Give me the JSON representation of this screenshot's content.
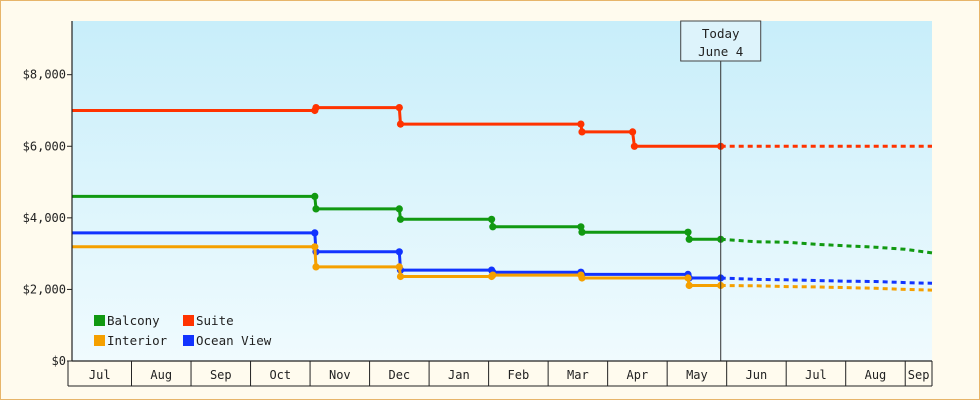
{
  "chart_data": {
    "type": "line",
    "y_ticks": [
      {
        "value": 0,
        "label": "$0"
      },
      {
        "value": 2000,
        "label": "$2,000"
      },
      {
        "value": 4000,
        "label": "$4,000"
      },
      {
        "value": 6000,
        "label": "$6,000"
      },
      {
        "value": 8000,
        "label": "$8,000"
      }
    ],
    "ylim": [
      0,
      9500
    ],
    "xlim": [
      0,
      14.45
    ],
    "months": [
      "Jul",
      "Aug",
      "Sep",
      "Oct",
      "Nov",
      "Dec",
      "Jan",
      "Feb",
      "Mar",
      "Apr",
      "May",
      "Jun",
      "Jul",
      "Aug",
      "Sep"
    ],
    "month_starts": [
      0,
      1,
      2,
      3,
      4,
      5,
      6,
      7,
      8,
      9,
      10,
      11,
      12,
      13,
      14
    ],
    "today": {
      "line1": "Today",
      "line2": "June 4",
      "x": 10.9
    },
    "grid": false,
    "legend_placement": "bottom-left",
    "legend": [
      {
        "label": "Balcony",
        "color": "#119911"
      },
      {
        "label": "Suite",
        "color": "#ff3300"
      },
      {
        "label": "Interior",
        "color": "#f5a000"
      },
      {
        "label": "Ocean View",
        "color": "#1133ff"
      }
    ],
    "series": [
      {
        "name": "Suite",
        "color": "#ff3300",
        "points": [
          [
            0,
            7000
          ],
          [
            4.08,
            7000
          ],
          [
            4.1,
            7080
          ],
          [
            5.5,
            7080
          ],
          [
            5.52,
            6620
          ],
          [
            8.55,
            6620
          ],
          [
            8.57,
            6400
          ],
          [
            9.42,
            6400
          ],
          [
            9.45,
            6000
          ],
          [
            10.9,
            6000
          ]
        ],
        "forecast": [
          [
            10.9,
            6000
          ],
          [
            12.0,
            6000
          ],
          [
            13.0,
            6000
          ],
          [
            14.45,
            6000
          ]
        ]
      },
      {
        "name": "Balcony",
        "color": "#119911",
        "points": [
          [
            0,
            4600
          ],
          [
            4.08,
            4600
          ],
          [
            4.1,
            4250
          ],
          [
            5.5,
            4250
          ],
          [
            5.52,
            3960
          ],
          [
            7.05,
            3960
          ],
          [
            7.07,
            3750
          ],
          [
            8.55,
            3750
          ],
          [
            8.57,
            3600
          ],
          [
            10.35,
            3600
          ],
          [
            10.37,
            3400
          ],
          [
            10.9,
            3400
          ]
        ],
        "forecast": [
          [
            10.9,
            3400
          ],
          [
            11.5,
            3330
          ],
          [
            12.0,
            3320
          ],
          [
            12.5,
            3260
          ],
          [
            13.0,
            3220
          ],
          [
            13.5,
            3180
          ],
          [
            14.0,
            3120
          ],
          [
            14.45,
            3020
          ]
        ]
      },
      {
        "name": "Ocean View",
        "color": "#1133ff",
        "points": [
          [
            0,
            3580
          ],
          [
            4.08,
            3580
          ],
          [
            4.1,
            3050
          ],
          [
            5.5,
            3050
          ],
          [
            5.52,
            2540
          ],
          [
            7.05,
            2540
          ],
          [
            7.07,
            2480
          ],
          [
            8.55,
            2480
          ],
          [
            8.57,
            2420
          ],
          [
            10.35,
            2420
          ],
          [
            10.37,
            2320
          ],
          [
            10.9,
            2320
          ]
        ],
        "forecast": [
          [
            10.9,
            2320
          ],
          [
            11.5,
            2280
          ],
          [
            12.0,
            2270
          ],
          [
            12.5,
            2250
          ],
          [
            13.0,
            2230
          ],
          [
            13.5,
            2220
          ],
          [
            14.0,
            2190
          ],
          [
            14.45,
            2170
          ]
        ]
      },
      {
        "name": "Interior",
        "color": "#f5a000",
        "points": [
          [
            0,
            3190
          ],
          [
            4.08,
            3190
          ],
          [
            4.1,
            2630
          ],
          [
            5.5,
            2630
          ],
          [
            5.52,
            2360
          ],
          [
            7.05,
            2360
          ],
          [
            7.07,
            2400
          ],
          [
            8.55,
            2400
          ],
          [
            8.57,
            2320
          ],
          [
            10.35,
            2320
          ],
          [
            10.37,
            2110
          ],
          [
            10.9,
            2110
          ]
        ],
        "forecast": [
          [
            10.9,
            2110
          ],
          [
            11.5,
            2100
          ],
          [
            12.0,
            2080
          ],
          [
            12.5,
            2070
          ],
          [
            13.0,
            2050
          ],
          [
            13.5,
            2030
          ],
          [
            14.0,
            2000
          ],
          [
            14.45,
            1980
          ]
        ]
      }
    ]
  }
}
